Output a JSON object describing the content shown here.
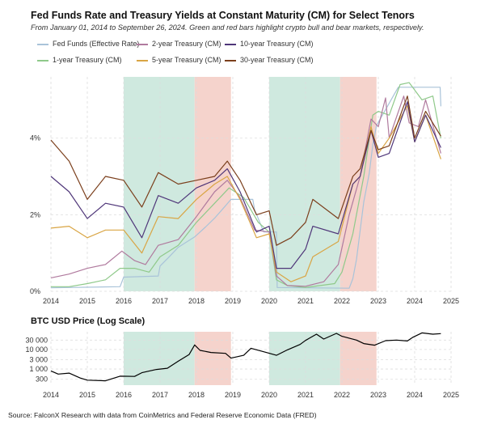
{
  "header": {
    "title": "Fed Funds Rate and Treasury Yields at Constant Maturity (CM) for Select Tenors",
    "subtitle": "From January 01, 2014 to September 26, 2024. Green and red bars highlight crypto bull and bear markets, respectively."
  },
  "source": "Source: FalconX Research with data from CoinMetrics and Federal Reserve Economic Data (FRED)",
  "colors": {
    "bull": "#cfe9df",
    "bear": "#f5d3cc",
    "grid": "#dddddd"
  },
  "chart_data": [
    {
      "type": "line",
      "title": "Fed Funds Rate and Treasury Yields at Constant Maturity (CM) for Select Tenors",
      "x_ticks": [
        "2014",
        "2015",
        "2016",
        "2017",
        "2018",
        "2019",
        "2020",
        "2021",
        "2022",
        "2023",
        "2024",
        "2025"
      ],
      "y_ticks": [
        "0%",
        "2%",
        "4%"
      ],
      "ylim": [
        0,
        5.6
      ],
      "xlim": [
        2014,
        2025
      ],
      "legend_placement": "top",
      "shaded_regions": [
        {
          "kind": "bull",
          "start": 2016.0,
          "end": 2017.95
        },
        {
          "kind": "bear",
          "start": 2017.95,
          "end": 2018.95
        },
        {
          "kind": "bull",
          "start": 2020.0,
          "end": 2021.95
        },
        {
          "kind": "bear",
          "start": 2021.95,
          "end": 2022.95
        }
      ],
      "series": [
        {
          "name": "Fed Funds (Effective Rate)",
          "color": "#a9c3d9",
          "points": [
            [
              2014,
              0.09
            ],
            [
              2015.9,
              0.12
            ],
            [
              2016.0,
              0.37
            ],
            [
              2016.95,
              0.4
            ],
            [
              2017.0,
              0.66
            ],
            [
              2017.25,
              0.9
            ],
            [
              2017.5,
              1.15
            ],
            [
              2017.95,
              1.42
            ],
            [
              2018.25,
              1.68
            ],
            [
              2018.5,
              1.91
            ],
            [
              2018.75,
              2.18
            ],
            [
              2018.95,
              2.4
            ],
            [
              2019.55,
              2.4
            ],
            [
              2019.6,
              2.13
            ],
            [
              2019.7,
              1.9
            ],
            [
              2019.85,
              1.55
            ],
            [
              2020.2,
              1.55
            ],
            [
              2020.22,
              0.1
            ],
            [
              2022.2,
              0.08
            ],
            [
              2022.3,
              0.33
            ],
            [
              2022.4,
              0.83
            ],
            [
              2022.5,
              1.58
            ],
            [
              2022.6,
              2.33
            ],
            [
              2022.75,
              3.08
            ],
            [
              2022.85,
              3.83
            ],
            [
              2022.95,
              4.33
            ],
            [
              2023.1,
              4.58
            ],
            [
              2023.25,
              4.83
            ],
            [
              2023.4,
              5.08
            ],
            [
              2023.55,
              5.33
            ],
            [
              2024.7,
              5.33
            ],
            [
              2024.72,
              4.83
            ]
          ]
        },
        {
          "name": "1-year Treasury (CM)",
          "color": "#8fc98a",
          "points": [
            [
              2014,
              0.12
            ],
            [
              2014.5,
              0.12
            ],
            [
              2015,
              0.2
            ],
            [
              2015.5,
              0.3
            ],
            [
              2015.9,
              0.6
            ],
            [
              2016.3,
              0.6
            ],
            [
              2016.7,
              0.5
            ],
            [
              2017.0,
              0.9
            ],
            [
              2017.5,
              1.2
            ],
            [
              2018.0,
              1.8
            ],
            [
              2018.5,
              2.3
            ],
            [
              2018.9,
              2.7
            ],
            [
              2019.3,
              2.45
            ],
            [
              2019.7,
              1.8
            ],
            [
              2020.0,
              1.55
            ],
            [
              2020.2,
              0.3
            ],
            [
              2020.5,
              0.15
            ],
            [
              2021.0,
              0.1
            ],
            [
              2021.8,
              0.2
            ],
            [
              2022.0,
              0.5
            ],
            [
              2022.3,
              1.5
            ],
            [
              2022.6,
              3.0
            ],
            [
              2022.85,
              4.6
            ],
            [
              2023.0,
              4.7
            ],
            [
              2023.3,
              4.6
            ],
            [
              2023.6,
              5.4
            ],
            [
              2023.85,
              5.45
            ],
            [
              2024.2,
              5.0
            ],
            [
              2024.5,
              5.1
            ],
            [
              2024.72,
              4.0
            ]
          ]
        },
        {
          "name": "2-year Treasury (CM)",
          "color": "#b07a9e",
          "points": [
            [
              2014,
              0.35
            ],
            [
              2014.5,
              0.45
            ],
            [
              2015.0,
              0.6
            ],
            [
              2015.5,
              0.7
            ],
            [
              2015.95,
              1.05
            ],
            [
              2016.3,
              0.8
            ],
            [
              2016.6,
              0.7
            ],
            [
              2016.95,
              1.2
            ],
            [
              2017.5,
              1.35
            ],
            [
              2018.0,
              1.95
            ],
            [
              2018.5,
              2.6
            ],
            [
              2018.85,
              2.9
            ],
            [
              2019.2,
              2.45
            ],
            [
              2019.6,
              1.6
            ],
            [
              2020.0,
              1.55
            ],
            [
              2020.2,
              0.4
            ],
            [
              2020.5,
              0.15
            ],
            [
              2021.0,
              0.13
            ],
            [
              2021.5,
              0.25
            ],
            [
              2021.9,
              0.7
            ],
            [
              2022.2,
              2.0
            ],
            [
              2022.5,
              3.0
            ],
            [
              2022.8,
              4.5
            ],
            [
              2023.0,
              4.3
            ],
            [
              2023.2,
              5.05
            ],
            [
              2023.3,
              4.0
            ],
            [
              2023.7,
              5.1
            ],
            [
              2023.85,
              4.4
            ],
            [
              2024.1,
              4.3
            ],
            [
              2024.3,
              5.0
            ],
            [
              2024.72,
              3.6
            ]
          ]
        },
        {
          "name": "5-year Treasury (CM)",
          "color": "#d9a544",
          "points": [
            [
              2014,
              1.65
            ],
            [
              2014.5,
              1.7
            ],
            [
              2015.0,
              1.4
            ],
            [
              2015.5,
              1.6
            ],
            [
              2016.0,
              1.6
            ],
            [
              2016.5,
              1.0
            ],
            [
              2016.95,
              1.95
            ],
            [
              2017.5,
              1.9
            ],
            [
              2018.0,
              2.4
            ],
            [
              2018.5,
              2.8
            ],
            [
              2018.85,
              3.0
            ],
            [
              2019.2,
              2.4
            ],
            [
              2019.65,
              1.4
            ],
            [
              2020.0,
              1.5
            ],
            [
              2020.2,
              0.5
            ],
            [
              2020.6,
              0.25
            ],
            [
              2021.0,
              0.4
            ],
            [
              2021.2,
              0.9
            ],
            [
              2021.9,
              1.3
            ],
            [
              2022.3,
              2.8
            ],
            [
              2022.5,
              3.0
            ],
            [
              2022.8,
              4.3
            ],
            [
              2023.0,
              3.6
            ],
            [
              2023.3,
              4.0
            ],
            [
              2023.8,
              4.85
            ],
            [
              2024.0,
              3.9
            ],
            [
              2024.3,
              4.6
            ],
            [
              2024.72,
              3.45
            ]
          ]
        },
        {
          "name": "10-year Treasury (CM)",
          "color": "#4f3679",
          "points": [
            [
              2014,
              3.0
            ],
            [
              2014.5,
              2.6
            ],
            [
              2015.0,
              1.9
            ],
            [
              2015.5,
              2.3
            ],
            [
              2016.0,
              2.2
            ],
            [
              2016.5,
              1.4
            ],
            [
              2016.95,
              2.5
            ],
            [
              2017.5,
              2.3
            ],
            [
              2018.0,
              2.7
            ],
            [
              2018.5,
              2.9
            ],
            [
              2018.85,
              3.2
            ],
            [
              2019.2,
              2.6
            ],
            [
              2019.65,
              1.55
            ],
            [
              2020.0,
              1.7
            ],
            [
              2020.2,
              0.6
            ],
            [
              2020.6,
              0.6
            ],
            [
              2021.0,
              1.1
            ],
            [
              2021.2,
              1.7
            ],
            [
              2021.9,
              1.5
            ],
            [
              2022.3,
              2.8
            ],
            [
              2022.5,
              3.0
            ],
            [
              2022.8,
              4.2
            ],
            [
              2023.0,
              3.5
            ],
            [
              2023.3,
              3.6
            ],
            [
              2023.8,
              4.95
            ],
            [
              2024.0,
              3.9
            ],
            [
              2024.3,
              4.6
            ],
            [
              2024.72,
              3.75
            ]
          ]
        },
        {
          "name": "30-year Treasury (CM)",
          "color": "#7b3f1c",
          "points": [
            [
              2014,
              3.95
            ],
            [
              2014.5,
              3.4
            ],
            [
              2015.0,
              2.4
            ],
            [
              2015.5,
              3.0
            ],
            [
              2016.0,
              2.9
            ],
            [
              2016.5,
              2.2
            ],
            [
              2016.95,
              3.1
            ],
            [
              2017.5,
              2.8
            ],
            [
              2018.0,
              2.9
            ],
            [
              2018.5,
              3.0
            ],
            [
              2018.85,
              3.4
            ],
            [
              2019.2,
              2.9
            ],
            [
              2019.65,
              2.0
            ],
            [
              2020.0,
              2.1
            ],
            [
              2020.2,
              1.2
            ],
            [
              2020.6,
              1.4
            ],
            [
              2021.0,
              1.8
            ],
            [
              2021.2,
              2.4
            ],
            [
              2021.9,
              1.9
            ],
            [
              2022.3,
              3.0
            ],
            [
              2022.5,
              3.2
            ],
            [
              2022.8,
              4.2
            ],
            [
              2023.0,
              3.7
            ],
            [
              2023.3,
              3.8
            ],
            [
              2023.8,
              5.1
            ],
            [
              2024.0,
              4.0
            ],
            [
              2024.3,
              4.7
            ],
            [
              2024.72,
              4.05
            ]
          ]
        }
      ]
    },
    {
      "type": "line",
      "title": "BTC USD Price (Log Scale)",
      "scale": "log",
      "x_ticks": [
        "2014",
        "2015",
        "2016",
        "2017",
        "2018",
        "2019",
        "2020",
        "2021",
        "2022",
        "2023",
        "2024",
        "2025"
      ],
      "y_ticks": [
        {
          "value": 300,
          "label": "300"
        },
        {
          "value": 1000,
          "label": "1 000"
        },
        {
          "value": 3000,
          "label": "3 000"
        },
        {
          "value": 10000,
          "label": "10 000"
        },
        {
          "value": 30000,
          "label": "30 000"
        }
      ],
      "ylim": [
        150,
        80000
      ],
      "xlim": [
        2014,
        2025
      ],
      "series": [
        {
          "name": "",
          "color": "#000000",
          "points": [
            [
              2014,
              800
            ],
            [
              2014.2,
              550
            ],
            [
              2014.5,
              620
            ],
            [
              2014.8,
              350
            ],
            [
              2015.0,
              270
            ],
            [
              2015.5,
              250
            ],
            [
              2015.9,
              430
            ],
            [
              2016.3,
              420
            ],
            [
              2016.5,
              650
            ],
            [
              2016.9,
              950
            ],
            [
              2017.2,
              1100
            ],
            [
              2017.5,
              2500
            ],
            [
              2017.8,
              5500
            ],
            [
              2017.95,
              17000
            ],
            [
              2018.1,
              9000
            ],
            [
              2018.4,
              7000
            ],
            [
              2018.8,
              6300
            ],
            [
              2018.95,
              3600
            ],
            [
              2019.3,
              5000
            ],
            [
              2019.5,
              11500
            ],
            [
              2019.9,
              7200
            ],
            [
              2020.2,
              5000
            ],
            [
              2020.5,
              9500
            ],
            [
              2020.85,
              18000
            ],
            [
              2021.0,
              29000
            ],
            [
              2021.3,
              60000
            ],
            [
              2021.5,
              34000
            ],
            [
              2021.85,
              66000
            ],
            [
              2022.0,
              47000
            ],
            [
              2022.4,
              30000
            ],
            [
              2022.6,
              20000
            ],
            [
              2022.9,
              16500
            ],
            [
              2023.2,
              28000
            ],
            [
              2023.5,
              30000
            ],
            [
              2023.8,
              27000
            ],
            [
              2023.95,
              42000
            ],
            [
              2024.2,
              70000
            ],
            [
              2024.5,
              60000
            ],
            [
              2024.72,
              64000
            ]
          ]
        }
      ]
    }
  ]
}
